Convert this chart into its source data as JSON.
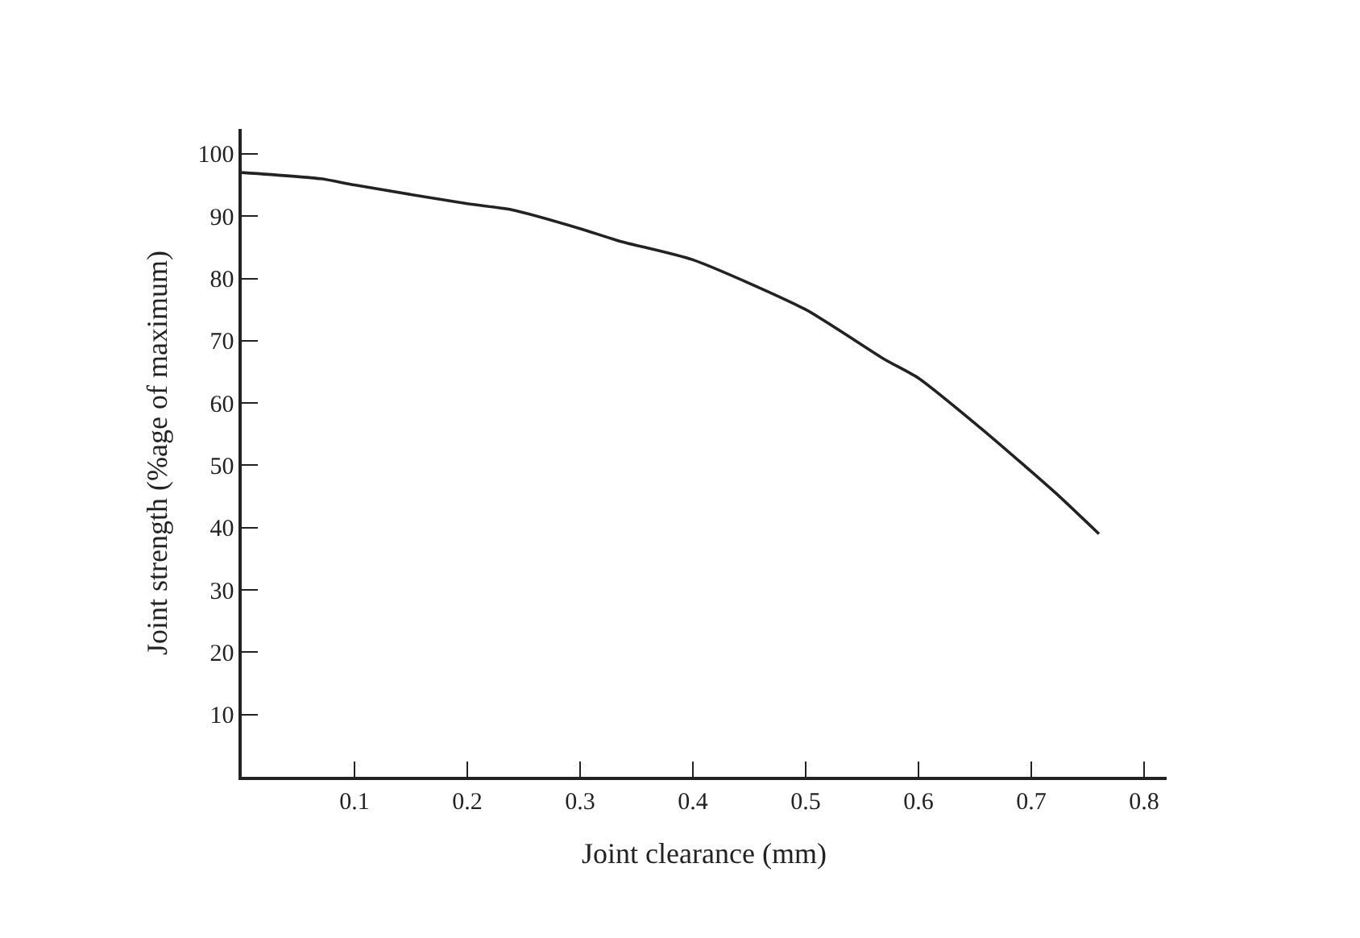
{
  "chart_data": {
    "type": "line",
    "xlabel": "Joint clearance (mm)",
    "ylabel": "Joint strength (%age of maximum)",
    "series": [
      {
        "color": "#222222",
        "x": [
          0,
          0.07,
          0.1,
          0.2,
          0.24,
          0.3,
          0.335,
          0.4,
          0.5,
          0.57,
          0.6,
          0.655,
          0.7,
          0.725,
          0.76
        ],
        "values": [
          97,
          96,
          95,
          92,
          91,
          88,
          86,
          83,
          75,
          67,
          64,
          56,
          49,
          45,
          39
        ]
      }
    ],
    "xlim": [
      0,
      0.82
    ],
    "xticks": [
      0.1,
      0.2,
      0.3,
      0.4,
      0.5,
      0.6,
      0.7,
      0.8
    ],
    "ylim": [
      0,
      104
    ],
    "yticks": [
      10,
      20,
      30,
      40,
      50,
      60,
      70,
      80,
      90,
      100
    ],
    "grid": false,
    "marker": "none",
    "line_style": "solid"
  }
}
